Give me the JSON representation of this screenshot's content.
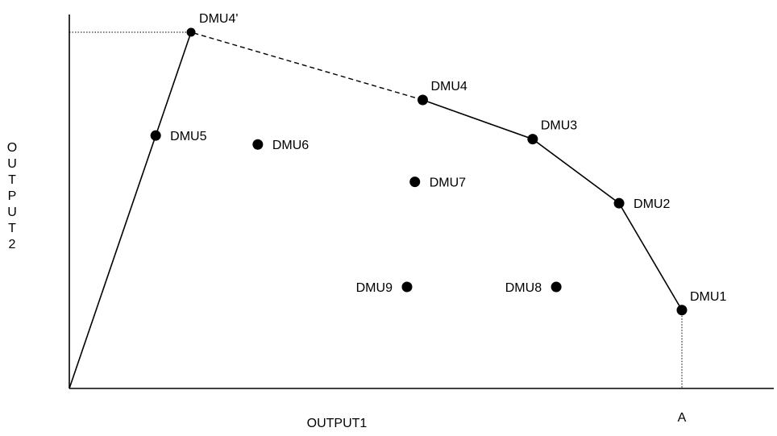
{
  "chart_data": {
    "type": "scatter",
    "title": "",
    "xlabel": "OUTPUT1",
    "ylabel": "OUTPUT2",
    "x_tick_labels": [
      {
        "x": 7.8,
        "label": "A"
      }
    ],
    "xlim": [
      0,
      8.7
    ],
    "ylim": [
      0,
      10
    ],
    "grid": false,
    "points": [
      {
        "name": "DMU1",
        "x": 7.8,
        "y": 2.2
      },
      {
        "name": "DMU2",
        "x": 7.0,
        "y": 5.2
      },
      {
        "name": "DMU3",
        "x": 5.9,
        "y": 7.0
      },
      {
        "name": "DMU4",
        "x": 4.5,
        "y": 8.1
      },
      {
        "name": "DMU5",
        "x": 1.1,
        "y": 7.1
      },
      {
        "name": "DMU6",
        "x": 2.4,
        "y": 6.85
      },
      {
        "name": "DMU7",
        "x": 4.4,
        "y": 5.8
      },
      {
        "name": "DMU8",
        "x": 6.2,
        "y": 2.85
      },
      {
        "name": "DMU9",
        "x": 4.3,
        "y": 2.85
      },
      {
        "name": "DMU4'",
        "x": 1.55,
        "y": 10.0
      }
    ],
    "frontier_solid": [
      "DMU1",
      "DMU2",
      "DMU3",
      "DMU4"
    ],
    "frontier_dashed": [
      "DMU4",
      "DMU4'"
    ],
    "origin_ray_to": "DMU4'",
    "guide_lines": [
      {
        "from": "DMU4'",
        "to": "y-axis",
        "style": "dotted"
      },
      {
        "from": "DMU1",
        "to": "x-axis",
        "style": "dotted"
      }
    ],
    "label_placement": {
      "DMU1": "top-right",
      "DMU2": "right",
      "DMU3": "top-right",
      "DMU4": "top-right",
      "DMU5": "right",
      "DMU6": "right",
      "DMU7": "right",
      "DMU8": "left",
      "DMU9": "left",
      "DMU4'": "top-right"
    }
  }
}
